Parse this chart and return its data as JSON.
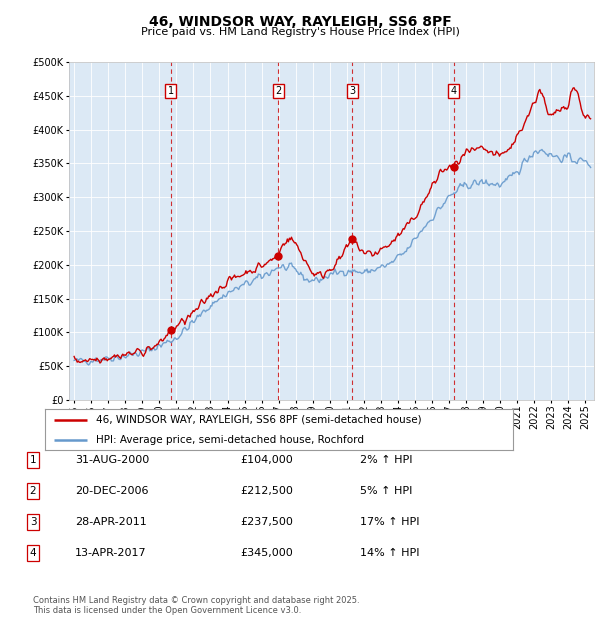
{
  "title": "46, WINDSOR WAY, RAYLEIGH, SS6 8PF",
  "subtitle": "Price paid vs. HM Land Registry's House Price Index (HPI)",
  "ylim": [
    0,
    500000
  ],
  "yticks": [
    0,
    50000,
    100000,
    150000,
    200000,
    250000,
    300000,
    350000,
    400000,
    450000,
    500000
  ],
  "xlim_start": 1994.7,
  "xlim_end": 2025.5,
  "sale_dates_num": [
    2000.664,
    2006.968,
    2011.32,
    2017.284
  ],
  "sale_prices": [
    104000,
    212500,
    237500,
    345000
  ],
  "sale_labels": [
    "1",
    "2",
    "3",
    "4"
  ],
  "legend_line1": "46, WINDSOR WAY, RAYLEIGH, SS6 8PF (semi-detached house)",
  "legend_line2": "HPI: Average price, semi-detached house, Rochford",
  "table_rows": [
    [
      "1",
      "31-AUG-2000",
      "£104,000",
      "2% ↑ HPI"
    ],
    [
      "2",
      "20-DEC-2006",
      "£212,500",
      "5% ↑ HPI"
    ],
    [
      "3",
      "28-APR-2011",
      "£237,500",
      "17% ↑ HPI"
    ],
    [
      "4",
      "13-APR-2017",
      "£345,000",
      "14% ↑ HPI"
    ]
  ],
  "footer": "Contains HM Land Registry data © Crown copyright and database right 2025.\nThis data is licensed under the Open Government Licence v3.0.",
  "plot_bg_color": "#dce9f5",
  "hpi_color": "#6699cc",
  "sale_line_color": "#cc0000",
  "vline_color": "#cc0000",
  "marker_box_color": "#cc0000",
  "hpi_anchors": [
    [
      1995.0,
      57000
    ],
    [
      1996.0,
      59000
    ],
    [
      1997.0,
      62000
    ],
    [
      1998.0,
      65000
    ],
    [
      1999.0,
      70000
    ],
    [
      2000.0,
      80000
    ],
    [
      2001.0,
      92000
    ],
    [
      2002.0,
      115000
    ],
    [
      2003.0,
      140000
    ],
    [
      2004.0,
      158000
    ],
    [
      2005.0,
      170000
    ],
    [
      2006.0,
      182000
    ],
    [
      2007.0,
      197000
    ],
    [
      2008.0,
      192000
    ],
    [
      2008.7,
      177000
    ],
    [
      2009.5,
      178000
    ],
    [
      2010.0,
      185000
    ],
    [
      2010.5,
      188000
    ],
    [
      2011.0,
      192000
    ],
    [
      2011.5,
      190000
    ],
    [
      2012.0,
      188000
    ],
    [
      2012.5,
      192000
    ],
    [
      2013.0,
      196000
    ],
    [
      2013.5,
      200000
    ],
    [
      2014.0,
      210000
    ],
    [
      2014.5,
      220000
    ],
    [
      2015.0,
      238000
    ],
    [
      2015.5,
      255000
    ],
    [
      2016.0,
      270000
    ],
    [
      2016.5,
      285000
    ],
    [
      2017.0,
      300000
    ],
    [
      2017.5,
      310000
    ],
    [
      2018.0,
      318000
    ],
    [
      2018.5,
      320000
    ],
    [
      2019.0,
      322000
    ],
    [
      2019.5,
      320000
    ],
    [
      2020.0,
      318000
    ],
    [
      2020.5,
      325000
    ],
    [
      2021.0,
      338000
    ],
    [
      2021.5,
      355000
    ],
    [
      2022.0,
      368000
    ],
    [
      2022.5,
      370000
    ],
    [
      2023.0,
      362000
    ],
    [
      2023.5,
      358000
    ],
    [
      2024.0,
      358000
    ],
    [
      2024.5,
      355000
    ],
    [
      2025.0,
      352000
    ],
    [
      2025.3,
      350000
    ]
  ],
  "pp_anchors": [
    [
      1995.0,
      58000
    ],
    [
      1996.0,
      60000
    ],
    [
      1997.0,
      63000
    ],
    [
      1998.0,
      67000
    ],
    [
      1999.0,
      72000
    ],
    [
      2000.0,
      82000
    ],
    [
      2000.664,
      104000
    ],
    [
      2001.0,
      108000
    ],
    [
      2002.0,
      128000
    ],
    [
      2003.0,
      155000
    ],
    [
      2004.0,
      175000
    ],
    [
      2005.0,
      188000
    ],
    [
      2006.0,
      198000
    ],
    [
      2006.968,
      212500
    ],
    [
      2007.3,
      235000
    ],
    [
      2007.8,
      238000
    ],
    [
      2008.3,
      218000
    ],
    [
      2008.7,
      200000
    ],
    [
      2009.0,
      188000
    ],
    [
      2009.5,
      183000
    ],
    [
      2010.0,
      195000
    ],
    [
      2010.5,
      205000
    ],
    [
      2011.32,
      237500
    ],
    [
      2011.5,
      232000
    ],
    [
      2012.0,
      218000
    ],
    [
      2012.5,
      215000
    ],
    [
      2013.0,
      222000
    ],
    [
      2013.5,
      230000
    ],
    [
      2014.0,
      242000
    ],
    [
      2014.5,
      255000
    ],
    [
      2015.0,
      272000
    ],
    [
      2015.5,
      292000
    ],
    [
      2016.0,
      315000
    ],
    [
      2016.5,
      338000
    ],
    [
      2017.284,
      345000
    ],
    [
      2017.5,
      352000
    ],
    [
      2018.0,
      365000
    ],
    [
      2018.5,
      368000
    ],
    [
      2019.0,
      370000
    ],
    [
      2019.5,
      365000
    ],
    [
      2020.0,
      360000
    ],
    [
      2020.5,
      370000
    ],
    [
      2021.0,
      390000
    ],
    [
      2021.5,
      415000
    ],
    [
      2022.0,
      440000
    ],
    [
      2022.3,
      460000
    ],
    [
      2022.5,
      450000
    ],
    [
      2022.8,
      420000
    ],
    [
      2023.0,
      418000
    ],
    [
      2023.5,
      430000
    ],
    [
      2024.0,
      440000
    ],
    [
      2024.3,
      465000
    ],
    [
      2024.5,
      455000
    ],
    [
      2024.8,
      430000
    ],
    [
      2025.0,
      420000
    ],
    [
      2025.3,
      415000
    ]
  ]
}
